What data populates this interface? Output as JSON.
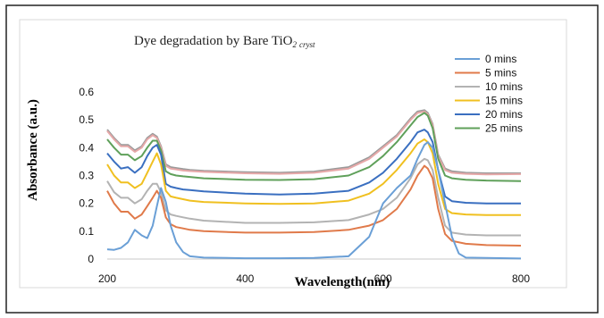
{
  "chart_data": {
    "type": "line",
    "title": "Dye degradation by Bare TiO",
    "title_subscript_1": "2",
    "title_subscript_2": "cryst",
    "xlabel": "Wavelength(nm)",
    "ylabel": "Absorbance (a.u.)",
    "xlim": [
      200,
      800
    ],
    "ylim": [
      0,
      0.6
    ],
    "x_ticks": [
      "200",
      "400",
      "600",
      "800"
    ],
    "y_ticks": [
      "0",
      "0.1",
      "0.2",
      "0.3",
      "0.4",
      "0.5",
      "0.6"
    ],
    "legend_position": "right",
    "grid": false,
    "series": [
      {
        "name": "0 mins",
        "color": "#6a9fd6",
        "x": [
          200,
          210,
          220,
          230,
          240,
          250,
          258,
          266,
          272,
          278,
          285,
          292,
          300,
          310,
          320,
          340,
          400,
          450,
          500,
          550,
          580,
          600,
          620,
          640,
          650,
          660,
          665,
          672,
          680,
          690,
          700,
          710,
          720,
          800
        ],
        "y": [
          0.035,
          0.033,
          0.04,
          0.06,
          0.105,
          0.085,
          0.075,
          0.12,
          0.19,
          0.255,
          0.205,
          0.12,
          0.06,
          0.025,
          0.01,
          0.005,
          0.003,
          0.003,
          0.004,
          0.01,
          0.08,
          0.2,
          0.255,
          0.3,
          0.36,
          0.41,
          0.42,
          0.4,
          0.32,
          0.2,
          0.08,
          0.02,
          0.005,
          0.002
        ]
      },
      {
        "name": "5 mins",
        "color": "#e07a4a",
        "x": [
          200,
          210,
          220,
          230,
          240,
          250,
          258,
          266,
          272,
          278,
          285,
          292,
          300,
          310,
          320,
          340,
          400,
          450,
          500,
          550,
          580,
          600,
          620,
          640,
          650,
          660,
          665,
          672,
          680,
          690,
          700,
          720,
          750,
          800
        ],
        "y": [
          0.245,
          0.2,
          0.17,
          0.17,
          0.145,
          0.16,
          0.19,
          0.22,
          0.245,
          0.22,
          0.15,
          0.125,
          0.115,
          0.11,
          0.105,
          0.1,
          0.095,
          0.095,
          0.097,
          0.105,
          0.12,
          0.14,
          0.18,
          0.25,
          0.3,
          0.335,
          0.325,
          0.29,
          0.18,
          0.09,
          0.065,
          0.055,
          0.05,
          0.048
        ]
      },
      {
        "name": "10 mins",
        "color": "#b3b3b3",
        "x": [
          200,
          210,
          220,
          230,
          240,
          250,
          258,
          266,
          272,
          278,
          285,
          292,
          300,
          310,
          320,
          340,
          400,
          450,
          500,
          550,
          580,
          600,
          620,
          640,
          650,
          660,
          665,
          672,
          680,
          690,
          700,
          720,
          750,
          800
        ],
        "y": [
          0.28,
          0.24,
          0.22,
          0.22,
          0.2,
          0.215,
          0.245,
          0.27,
          0.27,
          0.24,
          0.175,
          0.16,
          0.155,
          0.15,
          0.145,
          0.138,
          0.13,
          0.13,
          0.132,
          0.14,
          0.16,
          0.18,
          0.22,
          0.29,
          0.34,
          0.36,
          0.355,
          0.32,
          0.22,
          0.12,
          0.095,
          0.088,
          0.085,
          0.085
        ]
      },
      {
        "name": "15 mins",
        "color": "#f0c020",
        "x": [
          200,
          210,
          220,
          230,
          240,
          250,
          258,
          266,
          272,
          278,
          285,
          292,
          300,
          310,
          320,
          340,
          400,
          450,
          500,
          550,
          580,
          600,
          620,
          640,
          650,
          660,
          665,
          672,
          680,
          690,
          700,
          720,
          750,
          800
        ],
        "y": [
          0.34,
          0.3,
          0.275,
          0.275,
          0.255,
          0.27,
          0.31,
          0.35,
          0.38,
          0.34,
          0.245,
          0.225,
          0.22,
          0.215,
          0.21,
          0.205,
          0.2,
          0.198,
          0.2,
          0.21,
          0.235,
          0.27,
          0.32,
          0.38,
          0.415,
          0.43,
          0.42,
          0.38,
          0.27,
          0.18,
          0.165,
          0.16,
          0.158,
          0.158
        ]
      },
      {
        "name": "20 mins",
        "color": "#3a6fc0",
        "x": [
          200,
          210,
          220,
          230,
          240,
          250,
          258,
          266,
          272,
          278,
          285,
          292,
          300,
          310,
          320,
          340,
          400,
          450,
          500,
          550,
          580,
          600,
          620,
          640,
          650,
          660,
          665,
          672,
          680,
          690,
          700,
          720,
          750,
          800
        ],
        "y": [
          0.38,
          0.35,
          0.325,
          0.33,
          0.31,
          0.33,
          0.37,
          0.4,
          0.41,
          0.375,
          0.27,
          0.26,
          0.255,
          0.25,
          0.248,
          0.243,
          0.235,
          0.232,
          0.235,
          0.245,
          0.275,
          0.31,
          0.36,
          0.42,
          0.455,
          0.465,
          0.455,
          0.42,
          0.32,
          0.225,
          0.208,
          0.202,
          0.2,
          0.2
        ]
      },
      {
        "name": "25 mins",
        "color": "#5fa05a",
        "x": [
          200,
          210,
          220,
          230,
          240,
          250,
          258,
          266,
          272,
          278,
          285,
          292,
          300,
          310,
          320,
          340,
          400,
          450,
          500,
          550,
          580,
          600,
          620,
          640,
          650,
          660,
          665,
          672,
          680,
          690,
          700,
          720,
          750,
          800
        ],
        "y": [
          0.43,
          0.4,
          0.375,
          0.375,
          0.355,
          0.37,
          0.4,
          0.425,
          0.425,
          0.39,
          0.315,
          0.305,
          0.3,
          0.297,
          0.295,
          0.29,
          0.285,
          0.284,
          0.287,
          0.3,
          0.33,
          0.37,
          0.42,
          0.48,
          0.51,
          0.525,
          0.515,
          0.47,
          0.36,
          0.3,
          0.29,
          0.285,
          0.282,
          0.28
        ]
      },
      {
        "name": "",
        "color": "#e6a8a8",
        "x": [
          200,
          210,
          220,
          230,
          240,
          250,
          258,
          266,
          272,
          278,
          285,
          292,
          300,
          310,
          320,
          340,
          400,
          450,
          500,
          550,
          580,
          600,
          620,
          640,
          650,
          660,
          665,
          672,
          680,
          690,
          700,
          720,
          750,
          800
        ],
        "y": [
          0.46,
          0.43,
          0.405,
          0.405,
          0.385,
          0.4,
          0.43,
          0.445,
          0.435,
          0.4,
          0.335,
          0.325,
          0.322,
          0.318,
          0.316,
          0.313,
          0.308,
          0.306,
          0.31,
          0.325,
          0.36,
          0.4,
          0.44,
          0.5,
          0.525,
          0.53,
          0.52,
          0.48,
          0.37,
          0.32,
          0.31,
          0.306,
          0.304,
          0.305
        ]
      },
      {
        "name": "",
        "color": "#9a9a9a",
        "x": [
          200,
          210,
          220,
          230,
          240,
          250,
          258,
          266,
          272,
          278,
          285,
          292,
          300,
          310,
          320,
          340,
          400,
          450,
          500,
          550,
          580,
          600,
          620,
          640,
          650,
          660,
          665,
          672,
          680,
          690,
          700,
          720,
          750,
          800
        ],
        "y": [
          0.465,
          0.435,
          0.41,
          0.41,
          0.39,
          0.405,
          0.435,
          0.45,
          0.44,
          0.405,
          0.34,
          0.33,
          0.327,
          0.323,
          0.32,
          0.317,
          0.312,
          0.31,
          0.314,
          0.33,
          0.365,
          0.405,
          0.445,
          0.505,
          0.53,
          0.535,
          0.525,
          0.485,
          0.375,
          0.325,
          0.315,
          0.31,
          0.308,
          0.308
        ]
      }
    ]
  }
}
